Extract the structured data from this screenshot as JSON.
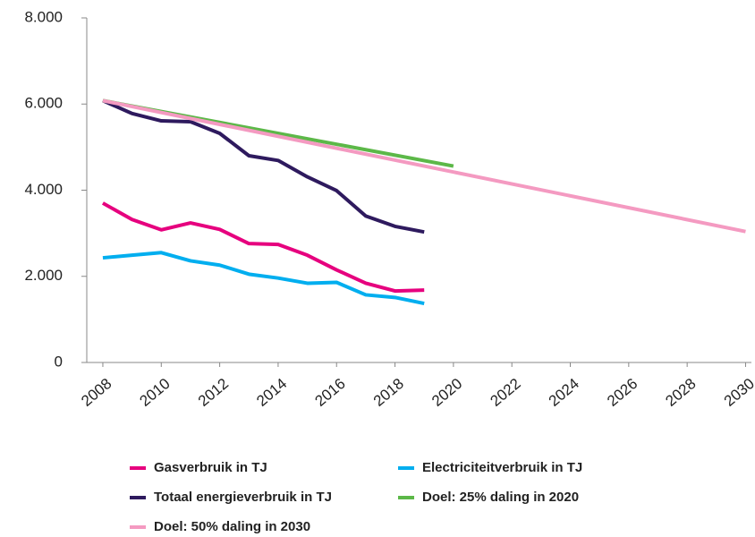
{
  "chart_data": {
    "type": "line",
    "xlim": [
      2007.45,
      2030.2
    ],
    "xticks": [
      2008,
      2010,
      2012,
      2014,
      2016,
      2018,
      2020,
      2022,
      2024,
      2026,
      2028,
      2030
    ],
    "ylim": [
      0,
      8000
    ],
    "yticks": [
      0,
      {
        "value": 2000,
        "label": "2.000"
      },
      {
        "value": 4000,
        "label": "4.000"
      },
      {
        "value": 6000,
        "label": "6.000"
      },
      {
        "value": 8000,
        "label": "8.000"
      }
    ],
    "grid": false,
    "legend": "bottom",
    "series": [
      {
        "name": "Gasverbruik in TJ",
        "color": "#e6007e",
        "x": [
          2008,
          2009,
          2010,
          2011,
          2012,
          2013,
          2014,
          2015,
          2016,
          2017,
          2018,
          2019
        ],
        "values": [
          3700,
          3320,
          3080,
          3240,
          3090,
          2760,
          2740,
          2490,
          2150,
          1840,
          1660,
          1680
        ]
      },
      {
        "name": "Electriciteitverbruik in TJ",
        "color": "#00aeef",
        "x": [
          2008,
          2009,
          2010,
          2011,
          2012,
          2013,
          2014,
          2015,
          2016,
          2017,
          2018,
          2019
        ],
        "values": [
          2430,
          2490,
          2550,
          2360,
          2260,
          2050,
          1960,
          1840,
          1860,
          1570,
          1510,
          1370
        ]
      },
      {
        "name": "Totaal energieverbruik in TJ",
        "color": "#2e1a5e",
        "x": [
          2008,
          2009,
          2010,
          2011,
          2012,
          2013,
          2014,
          2015,
          2016,
          2017,
          2018,
          2019
        ],
        "values": [
          6080,
          5780,
          5610,
          5590,
          5320,
          4800,
          4690,
          4310,
          3990,
          3400,
          3160,
          3030
        ]
      },
      {
        "name": "Doel: 25% daling in 2020",
        "color": "#5cb848",
        "x": [
          2008,
          2020
        ],
        "values": [
          6080,
          4560
        ]
      },
      {
        "name": "Doel: 50% daling in 2030",
        "color": "#f49ac1",
        "x": [
          2008,
          2030
        ],
        "values": [
          6080,
          3040
        ]
      }
    ]
  }
}
